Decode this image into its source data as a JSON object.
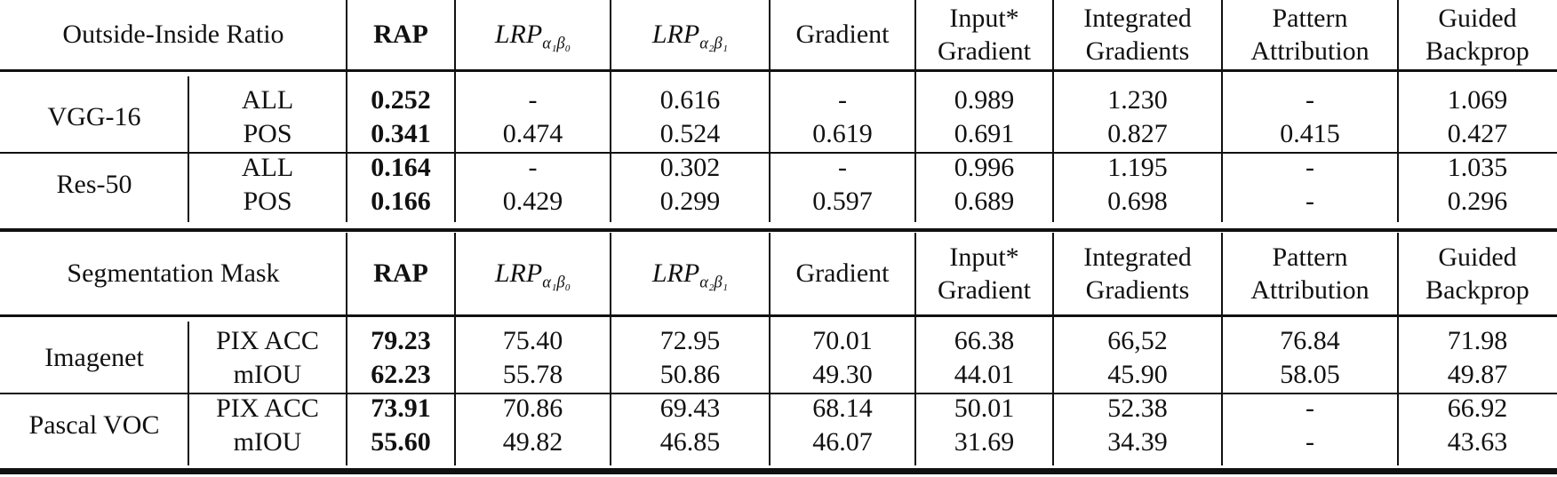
{
  "tables": [
    {
      "corner_label": "Outside-Inside Ratio",
      "headers": [
        {
          "text": "RAP",
          "bold": true
        },
        {
          "math_base": "LRP",
          "math_sub": "α₁β₀"
        },
        {
          "math_base": "LRP",
          "math_sub": "α₂β₁"
        },
        {
          "text": "Gradient"
        },
        {
          "line1": "Input*",
          "line2": "Gradient"
        },
        {
          "line1": "Integrated",
          "line2": "Gradients"
        },
        {
          "line1": "Pattern",
          "line2": "Attribution"
        },
        {
          "line1": "Guided",
          "line2": "Backprop"
        }
      ],
      "groups": [
        {
          "model": "VGG-16",
          "rows": [
            {
              "metric": "ALL",
              "values": [
                "0.252",
                "-",
                "0.616",
                "-",
                "0.989",
                "1.230",
                "-",
                "1.069"
              ]
            },
            {
              "metric": "POS",
              "values": [
                "0.341",
                "0.474",
                "0.524",
                "0.619",
                "0.691",
                "0.827",
                "0.415",
                "0.427"
              ]
            }
          ]
        },
        {
          "model": "Res-50",
          "rows": [
            {
              "metric": "ALL",
              "values": [
                "0.164",
                "-",
                "0.302",
                "-",
                "0.996",
                "1.195",
                "-",
                "1.035"
              ]
            },
            {
              "metric": "POS",
              "values": [
                "0.166",
                "0.429",
                "0.299",
                "0.597",
                "0.689",
                "0.698",
                "-",
                "0.296"
              ]
            }
          ]
        }
      ]
    },
    {
      "corner_label": "Segmentation Mask",
      "headers": [
        {
          "text": "RAP",
          "bold": true
        },
        {
          "math_base": "LRP",
          "math_sub": "α₁β₀"
        },
        {
          "math_base": "LRP",
          "math_sub": "α₂β₁"
        },
        {
          "text": "Gradient"
        },
        {
          "line1": "Input*",
          "line2": "Gradient"
        },
        {
          "line1": "Integrated",
          "line2": "Gradients"
        },
        {
          "line1": "Pattern",
          "line2": "Attribution"
        },
        {
          "line1": "Guided",
          "line2": "Backprop"
        }
      ],
      "groups": [
        {
          "model": "Imagenet",
          "rows": [
            {
              "metric": "PIX ACC",
              "values": [
                "79.23",
                "75.40",
                "72.95",
                "70.01",
                "66.38",
                "66,52",
                "76.84",
                "71.98"
              ]
            },
            {
              "metric": "mIOU",
              "values": [
                "62.23",
                "55.78",
                "50.86",
                "49.30",
                "44.01",
                "45.90",
                "58.05",
                "49.87"
              ]
            }
          ]
        },
        {
          "model": "Pascal VOC",
          "rows": [
            {
              "metric": "PIX ACC",
              "values": [
                "73.91",
                "70.86",
                "69.43",
                "68.14",
                "50.01",
                "52.38",
                "-",
                "66.92"
              ]
            },
            {
              "metric": "mIOU",
              "values": [
                "55.60",
                "49.82",
                "46.85",
                "46.07",
                "31.69",
                "34.39",
                "-",
                "43.63"
              ]
            }
          ]
        }
      ]
    }
  ]
}
